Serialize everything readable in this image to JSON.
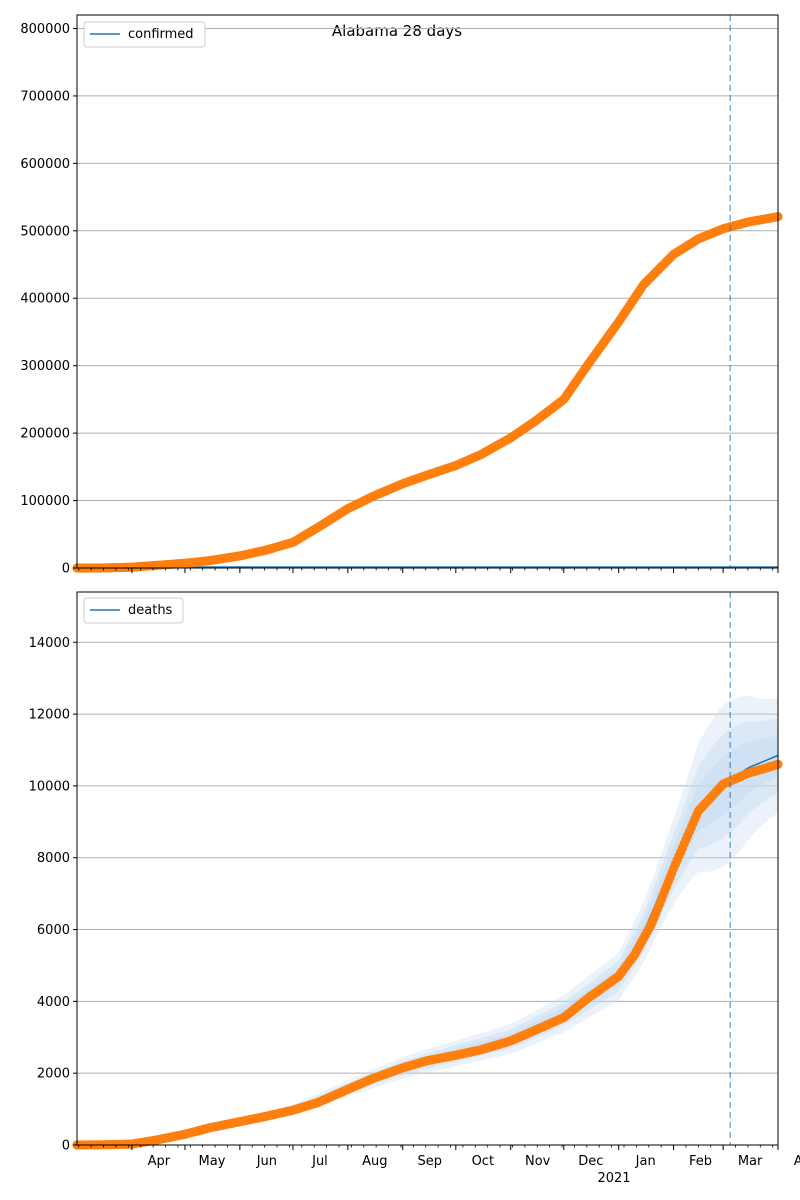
{
  "figure_title": "Alabama 28 days",
  "colors": {
    "observed": "#ff7f0e",
    "model": "#1f77b4",
    "grid": "#b0b0b0",
    "band": "#c6dbef"
  },
  "x_axis": {
    "ticks": [
      {
        "label": "Apr",
        "date": "2020-04-01"
      },
      {
        "label": "May",
        "date": "2020-05-01"
      },
      {
        "label": "Jun",
        "date": "2020-06-01"
      },
      {
        "label": "Jul",
        "date": "2020-07-01"
      },
      {
        "label": "Aug",
        "date": "2020-08-01"
      },
      {
        "label": "Sep",
        "date": "2020-09-01"
      },
      {
        "label": "Oct",
        "date": "2020-10-01"
      },
      {
        "label": "Nov",
        "date": "2020-11-01"
      },
      {
        "label": "Dec",
        "date": "2020-12-01"
      },
      {
        "label": "Jan",
        "date": "2021-01-01"
      },
      {
        "label": "Feb",
        "date": "2021-02-01"
      },
      {
        "label": "Mar",
        "date": "2021-03-01"
      },
      {
        "label": "Apr",
        "date": "2021-04-01"
      }
    ],
    "year_label": "2021",
    "range": [
      "2020-03-01",
      "2021-04-01"
    ],
    "forecast_date": "2021-03-05"
  },
  "chart_data": [
    {
      "type": "scatter",
      "legend": "confirmed",
      "legend_position": "top-left",
      "ylim": [
        0,
        820000
      ],
      "yticks": [
        "0",
        "100000",
        "200000",
        "300000",
        "400000",
        "500000",
        "600000",
        "700000",
        "800000"
      ],
      "grid": "y",
      "series": [
        {
          "name": "confirmed",
          "points": [
            [
              "2020-03-01",
              0
            ],
            [
              "2020-03-15",
              100
            ],
            [
              "2020-04-01",
              1200
            ],
            [
              "2020-04-15",
              4000
            ],
            [
              "2020-05-01",
              7000
            ],
            [
              "2020-05-15",
              11000
            ],
            [
              "2020-06-01",
              18000
            ],
            [
              "2020-06-15",
              26000
            ],
            [
              "2020-07-01",
              38000
            ],
            [
              "2020-07-15",
              60000
            ],
            [
              "2020-08-01",
              88000
            ],
            [
              "2020-08-15",
              106000
            ],
            [
              "2020-09-01",
              125000
            ],
            [
              "2020-09-15",
              138000
            ],
            [
              "2020-10-01",
              152000
            ],
            [
              "2020-10-15",
              168000
            ],
            [
              "2020-11-01",
              193000
            ],
            [
              "2020-11-15",
              218000
            ],
            [
              "2020-12-01",
              250000
            ],
            [
              "2020-12-15",
              303000
            ],
            [
              "2021-01-01",
              365000
            ],
            [
              "2021-01-15",
              420000
            ],
            [
              "2021-02-01",
              465000
            ],
            [
              "2021-02-15",
              488000
            ],
            [
              "2021-03-01",
              503000
            ],
            [
              "2021-03-15",
              513000
            ],
            [
              "2021-04-01",
              521000
            ]
          ]
        }
      ]
    },
    {
      "type": "scatter",
      "legend": "deaths",
      "legend_position": "top-left",
      "ylim": [
        0,
        15400
      ],
      "yticks": [
        "0",
        "2000",
        "4000",
        "6000",
        "8000",
        "10000",
        "12000",
        "14000"
      ],
      "grid": "y",
      "series": [
        {
          "name": "deaths",
          "points": [
            [
              "2020-03-01",
              0
            ],
            [
              "2020-03-15",
              5
            ],
            [
              "2020-04-01",
              25
            ],
            [
              "2020-04-15",
              140
            ],
            [
              "2020-05-01",
              300
            ],
            [
              "2020-05-15",
              480
            ],
            [
              "2020-06-01",
              650
            ],
            [
              "2020-06-15",
              790
            ],
            [
              "2020-07-01",
              970
            ],
            [
              "2020-07-15",
              1180
            ],
            [
              "2020-08-01",
              1550
            ],
            [
              "2020-08-15",
              1850
            ],
            [
              "2020-09-01",
              2150
            ],
            [
              "2020-09-15",
              2350
            ],
            [
              "2020-10-01",
              2500
            ],
            [
              "2020-10-15",
              2650
            ],
            [
              "2020-11-01",
              2900
            ],
            [
              "2020-11-15",
              3200
            ],
            [
              "2020-12-01",
              3550
            ],
            [
              "2020-12-15",
              4100
            ],
            [
              "2021-01-01",
              4700
            ],
            [
              "2021-01-10",
              5300
            ],
            [
              "2021-01-20",
              6200
            ],
            [
              "2021-02-01",
              7700
            ],
            [
              "2021-02-15",
              9300
            ],
            [
              "2021-03-01",
              10050
            ],
            [
              "2021-03-15",
              10350
            ],
            [
              "2021-04-01",
              10600
            ]
          ]
        },
        {
          "name": "model",
          "points": [
            [
              "2020-03-01",
              0
            ],
            [
              "2020-04-01",
              30
            ],
            [
              "2020-05-01",
              300
            ],
            [
              "2020-06-01",
              660
            ],
            [
              "2020-07-01",
              980
            ],
            [
              "2020-08-01",
              1580
            ],
            [
              "2020-09-01",
              2150
            ],
            [
              "2020-10-01",
              2550
            ],
            [
              "2020-11-01",
              2950
            ],
            [
              "2020-12-01",
              3650
            ],
            [
              "2021-01-01",
              4700
            ],
            [
              "2021-01-15",
              5900
            ],
            [
              "2021-02-01",
              7900
            ],
            [
              "2021-02-15",
              9400
            ],
            [
              "2021-03-01",
              10000
            ],
            [
              "2021-03-15",
              10500
            ],
            [
              "2021-04-01",
              10850
            ]
          ]
        }
      ]
    }
  ]
}
